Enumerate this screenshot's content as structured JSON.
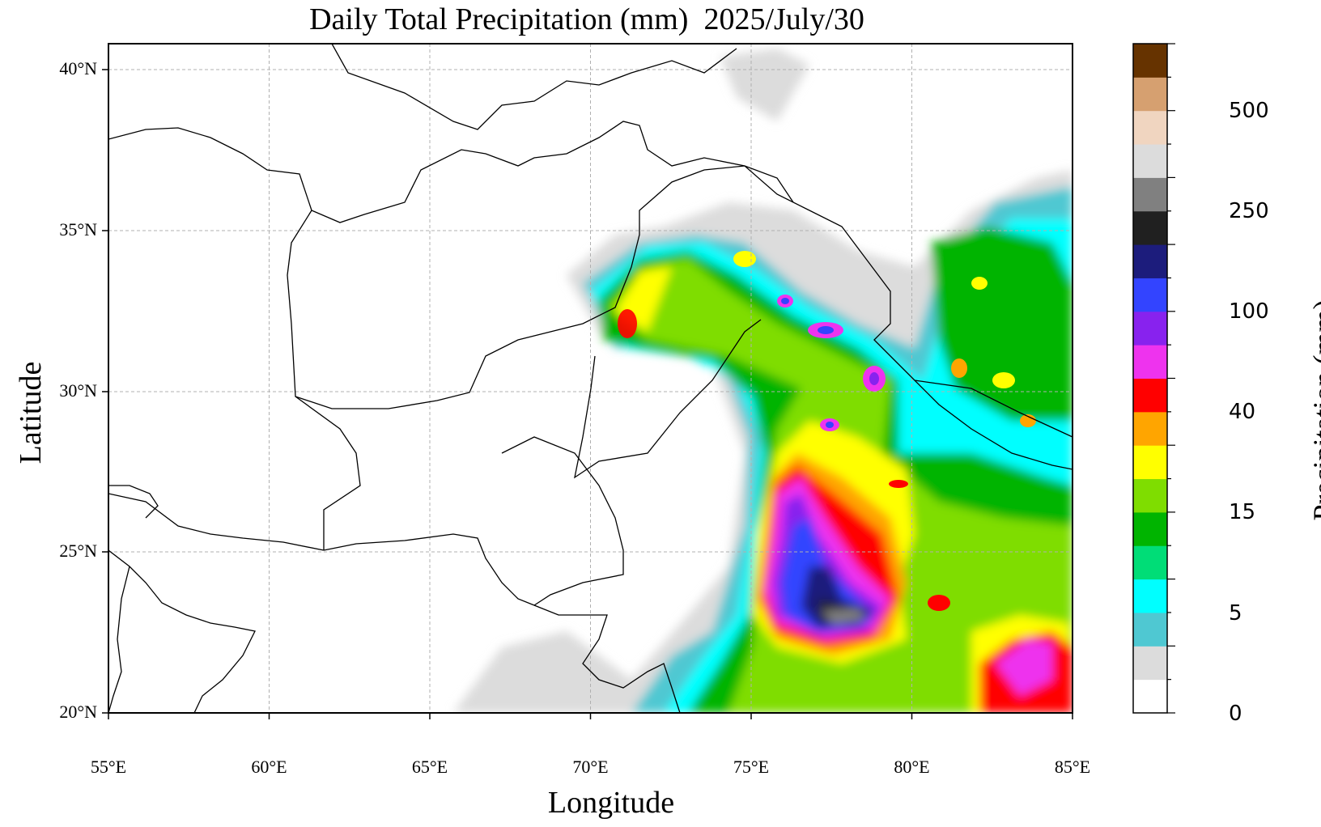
{
  "chart_data": {
    "type": "heatmap",
    "title": "Daily Total Precipitation (mm)  2025/July/30",
    "xlabel": "Longitude",
    "ylabel": "Latitude",
    "colorbar_label": "Precipitation (mm)",
    "x_ticks": [
      "55°E",
      "60°E",
      "65°E",
      "70°E",
      "75°E",
      "80°E",
      "85°E"
    ],
    "x_values": [
      55,
      60,
      65,
      70,
      75,
      80,
      85
    ],
    "y_ticks": [
      "20°N",
      "25°N",
      "30°N",
      "35°N",
      "40°N"
    ],
    "y_values": [
      20,
      25,
      30,
      35,
      40
    ],
    "xlim": [
      55,
      85
    ],
    "ylim": [
      20,
      40.8
    ],
    "grid": true,
    "colorbar_ticks": [
      "0",
      "5",
      "15",
      "40",
      "100",
      "250",
      "500"
    ],
    "colorbar_levels": [
      {
        "color": "#ffffff"
      },
      {
        "color": "#dcdcdc"
      },
      {
        "color": "#4fc8d2"
      },
      {
        "color": "#00ffff"
      },
      {
        "color": "#00dd77"
      },
      {
        "color": "#00b400"
      },
      {
        "color": "#7fdd00"
      },
      {
        "color": "#ffff00"
      },
      {
        "color": "#ffa500"
      },
      {
        "color": "#ff0000"
      },
      {
        "color": "#ee33ee"
      },
      {
        "color": "#8822ee"
      },
      {
        "color": "#3344ff"
      },
      {
        "color": "#1c1c7c"
      },
      {
        "color": "#202020"
      },
      {
        "color": "#808080"
      },
      {
        "color": "#dcdcdc"
      },
      {
        "color": "#f0d5c0"
      },
      {
        "color": "#d6a070"
      },
      {
        "color": "#663300"
      }
    ],
    "precip_cells": [
      {
        "lon": 71.5,
        "lat": 33.5,
        "level": 7
      },
      {
        "lon": 72.5,
        "lat": 33.8,
        "level": 6
      },
      {
        "lon": 71.2,
        "lat": 32.2,
        "level": 9
      },
      {
        "lon": 74.5,
        "lat": 33.6,
        "level": 7
      },
      {
        "lon": 76.0,
        "lat": 32.8,
        "level": 10
      },
      {
        "lon": 77.2,
        "lat": 31.9,
        "level": 11
      },
      {
        "lon": 78.5,
        "lat": 30.6,
        "level": 10
      },
      {
        "lon": 77.5,
        "lat": 29.0,
        "level": 11
      },
      {
        "lon": 76.5,
        "lat": 26.5,
        "level": 8
      },
      {
        "lon": 77.8,
        "lat": 25.5,
        "level": 9
      },
      {
        "lon": 76.5,
        "lat": 24.5,
        "level": 11
      },
      {
        "lon": 77.3,
        "lat": 23.5,
        "level": 13
      },
      {
        "lon": 78.5,
        "lat": 22.9,
        "level": 15
      },
      {
        "lon": 79.8,
        "lat": 26.9,
        "level": 9
      },
      {
        "lon": 81.0,
        "lat": 23.3,
        "level": 10
      },
      {
        "lon": 83.5,
        "lat": 21.2,
        "level": 10
      },
      {
        "lon": 82.5,
        "lat": 33.4,
        "level": 9
      },
      {
        "lon": 81.5,
        "lat": 30.7,
        "level": 9
      },
      {
        "lon": 84.0,
        "lat": 29.2,
        "level": 8
      },
      {
        "lon": 83.0,
        "lat": 31.5,
        "level": 7
      }
    ]
  }
}
